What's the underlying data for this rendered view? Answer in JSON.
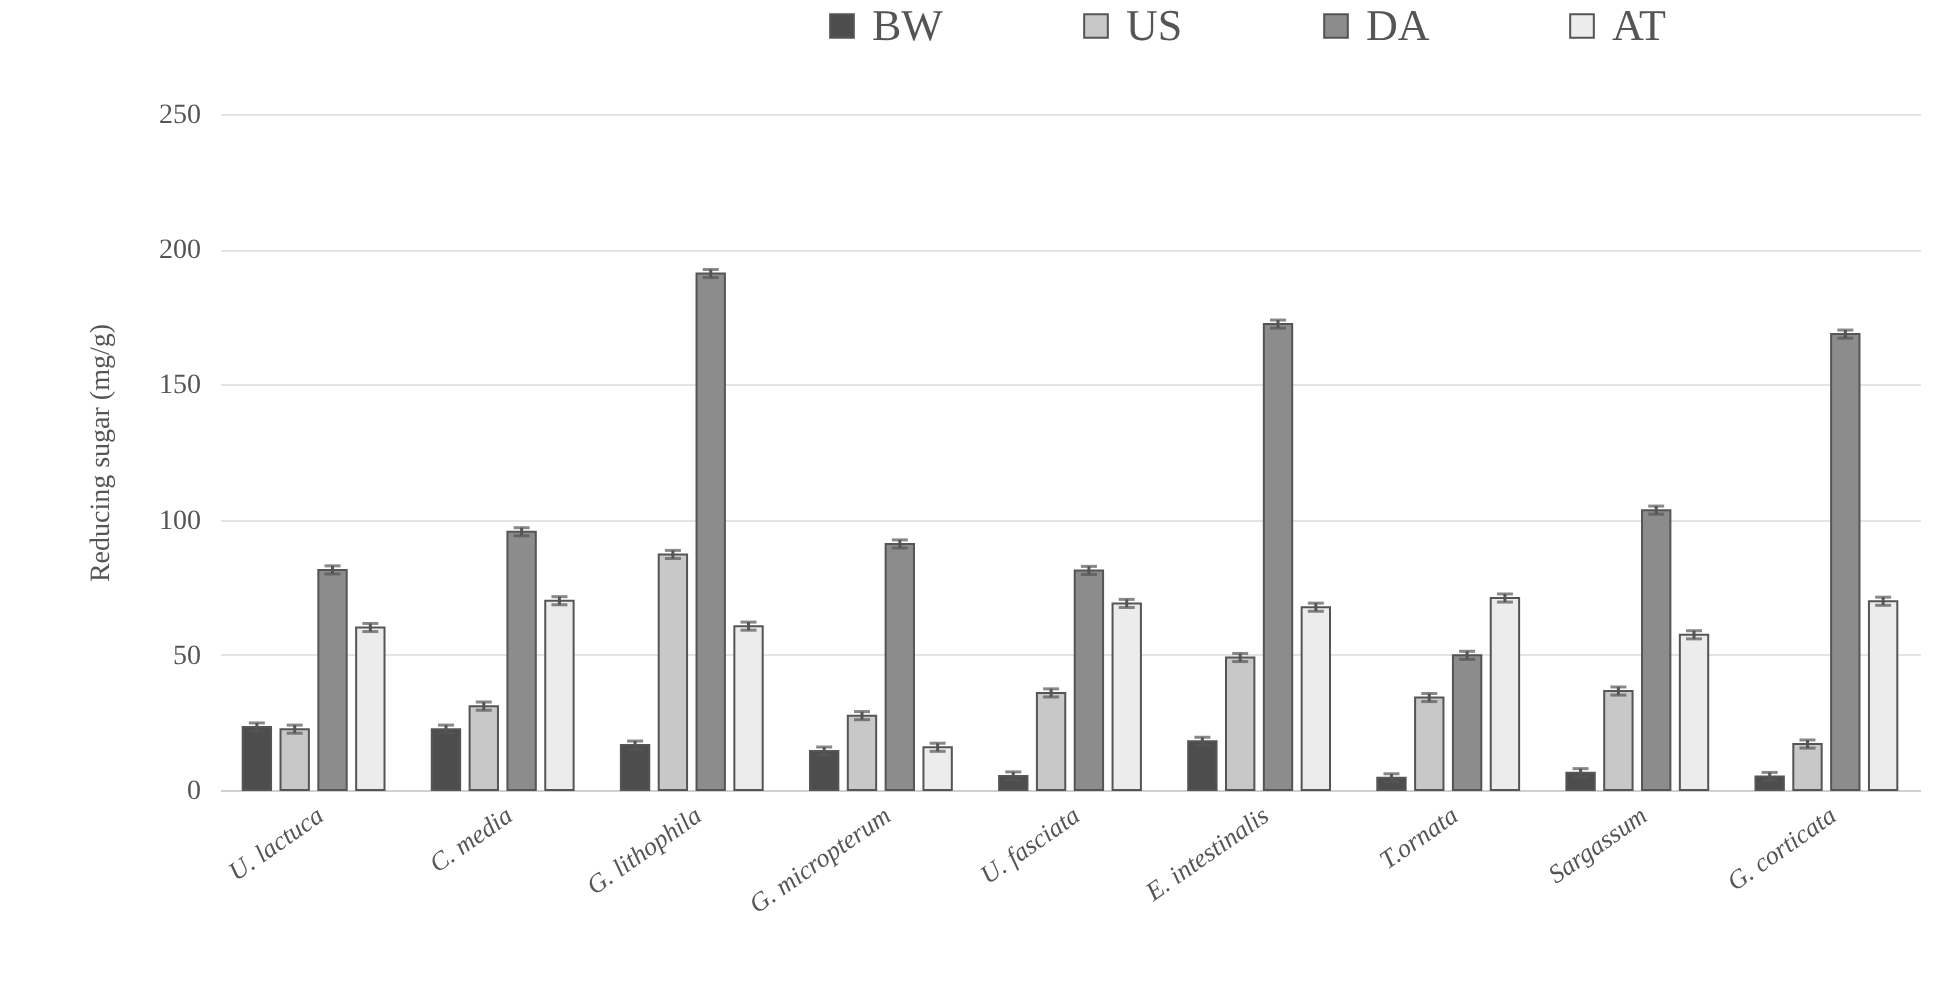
{
  "chart_data": {
    "type": "bar",
    "ylabel": "Reducing sugar (mg/g)",
    "categories": [
      "U. lactuca",
      "C. media",
      "G. lithophila",
      "G. micropterum",
      "U. fasciata",
      "E. intestinalis",
      "T.ornata",
      "Sargassum",
      "G. corticata"
    ],
    "series": [
      {
        "name": "BW",
        "color": "#4d4d4d",
        "values": [
          23.3,
          22.5,
          16.6,
          14.4,
          5.2,
          18,
          4.5,
          6.4,
          5
        ],
        "errors": [
          1.5,
          1.5,
          1.5,
          1.5,
          1.5,
          1.5,
          1.5,
          1.5,
          1.5
        ]
      },
      {
        "name": "US",
        "color": "#c8c8c8",
        "values": [
          22.5,
          31,
          87.1,
          27.5,
          35.9,
          49,
          34.2,
          36.6,
          17
        ],
        "errors": [
          1.5,
          1.5,
          1.5,
          1.5,
          1.5,
          1.5,
          1.5,
          1.5,
          1.5
        ]
      },
      {
        "name": "DA",
        "color": "#8c8c8c",
        "values": [
          81.4,
          95.5,
          191,
          91,
          81.2,
          172.3,
          49.8,
          103.5,
          168.6
        ],
        "errors": [
          1.5,
          1.5,
          1.5,
          1.5,
          1.5,
          1.5,
          1.5,
          1.5,
          1.5
        ]
      },
      {
        "name": "AT",
        "color": "#ececec",
        "values": [
          60.1,
          70,
          60.6,
          15.8,
          69,
          67.6,
          71,
          57.4,
          69.8
        ],
        "errors": [
          1.5,
          1.5,
          1.5,
          1.5,
          1.5,
          1.5,
          1.5,
          1.5,
          1.5
        ]
      }
    ],
    "ylim": [
      0,
      250
    ],
    "yticks": [
      0,
      50,
      100,
      150,
      200,
      250
    ],
    "grid": "y",
    "legend": "top"
  }
}
